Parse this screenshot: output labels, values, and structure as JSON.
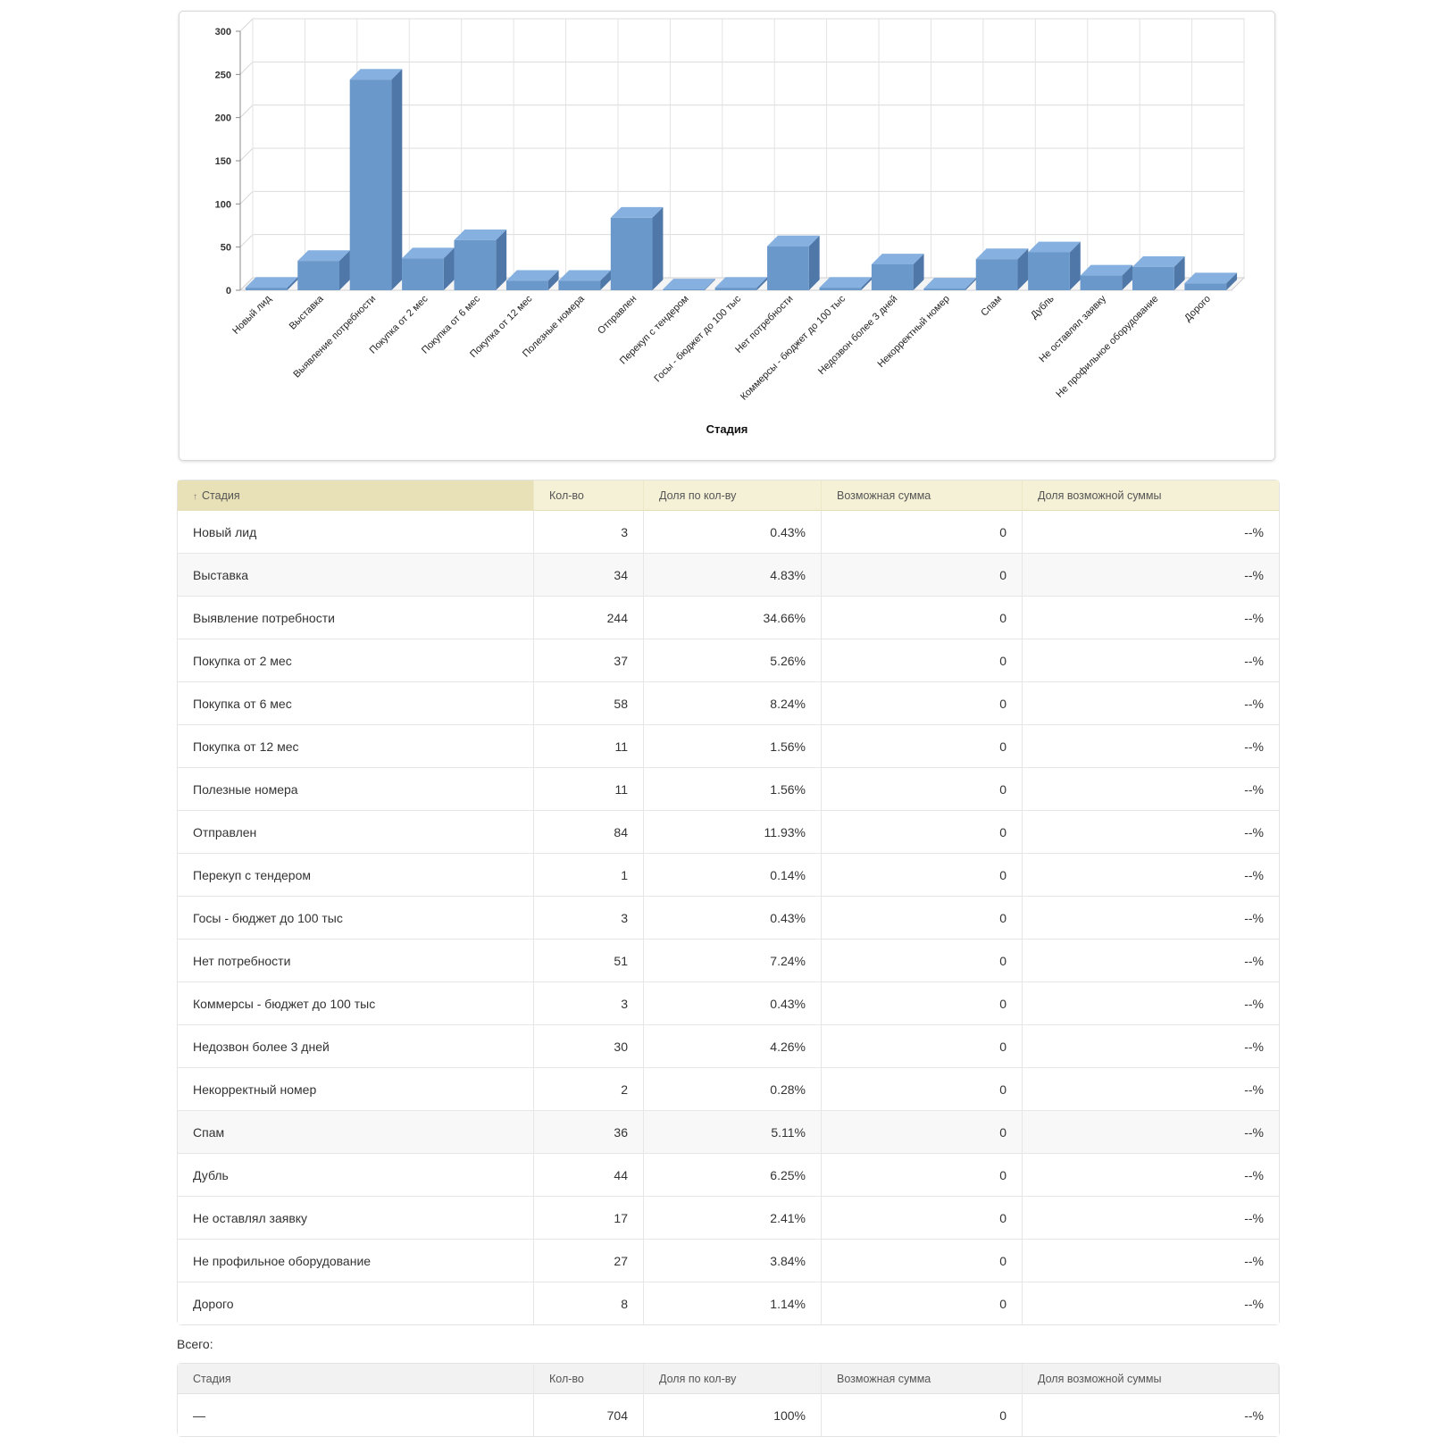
{
  "chart_data": {
    "type": "bar",
    "xlabel": "Стадия",
    "ylim": [
      0,
      300
    ],
    "yticks": [
      0,
      50,
      100,
      150,
      200,
      250,
      300
    ],
    "grid": true,
    "bar_color": "#6a98cb",
    "categories": [
      "Новый лид",
      "Выставка",
      "Выявление потребности",
      "Покупка от 2 мес",
      "Покупка от 6 мес",
      "Покупка от 12 мес",
      "Полезные номера",
      "Отправлен",
      "Перекуп с тендером",
      "Госы - бюджет до 100 тыс",
      "Нет потребности",
      "Коммерсы - бюджет до 100 тыс",
      "Недозвон более 3 дней",
      "Некорректный номер",
      "Спам",
      "Дубль",
      "Не оставлял заявку",
      "Не профильное оборудование",
      "Дорого"
    ],
    "values": [
      3,
      34,
      244,
      37,
      58,
      11,
      11,
      84,
      1,
      3,
      51,
      3,
      30,
      2,
      36,
      44,
      17,
      27,
      8
    ]
  },
  "table": {
    "headers": {
      "stage": "Стадия",
      "count": "Кол-во",
      "share_count": "Доля по кол-ву",
      "possible_sum": "Возможная сумма",
      "share_sum": "Доля возможной суммы"
    },
    "sort_indicator": "↑",
    "rows": [
      {
        "stage": "Новый лид",
        "count": "3",
        "share": "0.43%",
        "sum": "0",
        "share_sum": "--%"
      },
      {
        "stage": "Выставка",
        "count": "34",
        "share": "4.83%",
        "sum": "0",
        "share_sum": "--%"
      },
      {
        "stage": "Выявление потребности",
        "count": "244",
        "share": "34.66%",
        "sum": "0",
        "share_sum": "--%"
      },
      {
        "stage": "Покупка от 2 мес",
        "count": "37",
        "share": "5.26%",
        "sum": "0",
        "share_sum": "--%"
      },
      {
        "stage": "Покупка от 6 мес",
        "count": "58",
        "share": "8.24%",
        "sum": "0",
        "share_sum": "--%"
      },
      {
        "stage": "Покупка от 12 мес",
        "count": "11",
        "share": "1.56%",
        "sum": "0",
        "share_sum": "--%"
      },
      {
        "stage": "Полезные номера",
        "count": "11",
        "share": "1.56%",
        "sum": "0",
        "share_sum": "--%"
      },
      {
        "stage": "Отправлен",
        "count": "84",
        "share": "11.93%",
        "sum": "0",
        "share_sum": "--%"
      },
      {
        "stage": "Перекуп с тендером",
        "count": "1",
        "share": "0.14%",
        "sum": "0",
        "share_sum": "--%"
      },
      {
        "stage": "Госы - бюджет до 100 тыс",
        "count": "3",
        "share": "0.43%",
        "sum": "0",
        "share_sum": "--%"
      },
      {
        "stage": "Нет потребности",
        "count": "51",
        "share": "7.24%",
        "sum": "0",
        "share_sum": "--%"
      },
      {
        "stage": "Коммерсы - бюджет до 100 тыс",
        "count": "3",
        "share": "0.43%",
        "sum": "0",
        "share_sum": "--%"
      },
      {
        "stage": "Недозвон более 3 дней",
        "count": "30",
        "share": "4.26%",
        "sum": "0",
        "share_sum": "--%"
      },
      {
        "stage": "Некорректный номер",
        "count": "2",
        "share": "0.28%",
        "sum": "0",
        "share_sum": "--%"
      },
      {
        "stage": "Спам",
        "count": "36",
        "share": "5.11%",
        "sum": "0",
        "share_sum": "--%"
      },
      {
        "stage": "Дубль",
        "count": "44",
        "share": "6.25%",
        "sum": "0",
        "share_sum": "--%"
      },
      {
        "stage": "Не оставлял заявку",
        "count": "17",
        "share": "2.41%",
        "sum": "0",
        "share_sum": "--%"
      },
      {
        "stage": "Не профильное оборудование",
        "count": "27",
        "share": "3.84%",
        "sum": "0",
        "share_sum": "--%"
      },
      {
        "stage": "Дорого",
        "count": "8",
        "share": "1.14%",
        "sum": "0",
        "share_sum": "--%"
      }
    ]
  },
  "totals": {
    "label": "Всего:",
    "headers": {
      "stage": "Стадия",
      "count": "Кол-во",
      "share_count": "Доля по кол-ву",
      "possible_sum": "Возможная сумма",
      "share_sum": "Доля возможной суммы"
    },
    "row": {
      "stage": "—",
      "count": "704",
      "share": "100%",
      "sum": "0",
      "share_sum": "--%"
    }
  }
}
